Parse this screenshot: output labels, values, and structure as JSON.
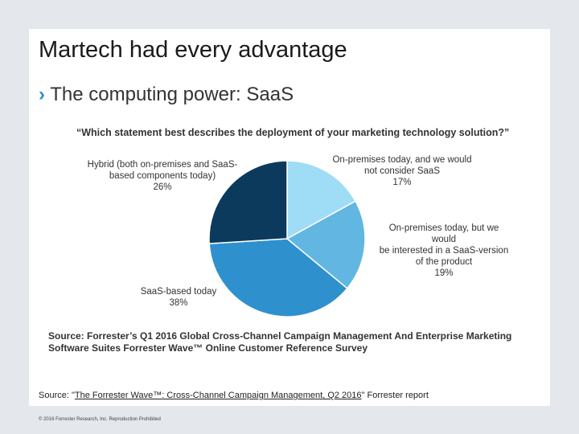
{
  "header": {
    "title": "Martech had every advantage",
    "bullet": "The computing power: SaaS"
  },
  "chart_data": {
    "type": "pie",
    "title": "“Which statement best describes the deployment of your marketing technology solution?”",
    "categories": [
      "On-premises today, and we would\nnot consider SaaS",
      "On-premises today, but we would\nbe interested in a SaaS-version\nof the product",
      "SaaS-based today",
      "Hybrid (both on-premises and SaaS-\nbased components today)"
    ],
    "values": [
      17,
      19,
      38,
      26
    ],
    "value_labels": [
      "17%",
      "19%",
      "38%",
      "26%"
    ],
    "colors": [
      "#9fdcf6",
      "#62b6e2",
      "#2f90ce",
      "#0b3a5d"
    ],
    "source": "Source: Forrester’s Q1 2016 Global Cross-Channel Campaign Management And Enterprise Marketing\nSoftware Suites Forrester Wave™ Online Customer Reference Survey"
  },
  "footer": {
    "source_prefix": "Source: \"",
    "source_link": "The Forrester Wave™: Cross-Channel Campaign Management, Q2 2016",
    "source_suffix": "\" Forrester report",
    "copyright": "© 2016 Forrester Research, Inc. Reproduction Prohibited"
  }
}
